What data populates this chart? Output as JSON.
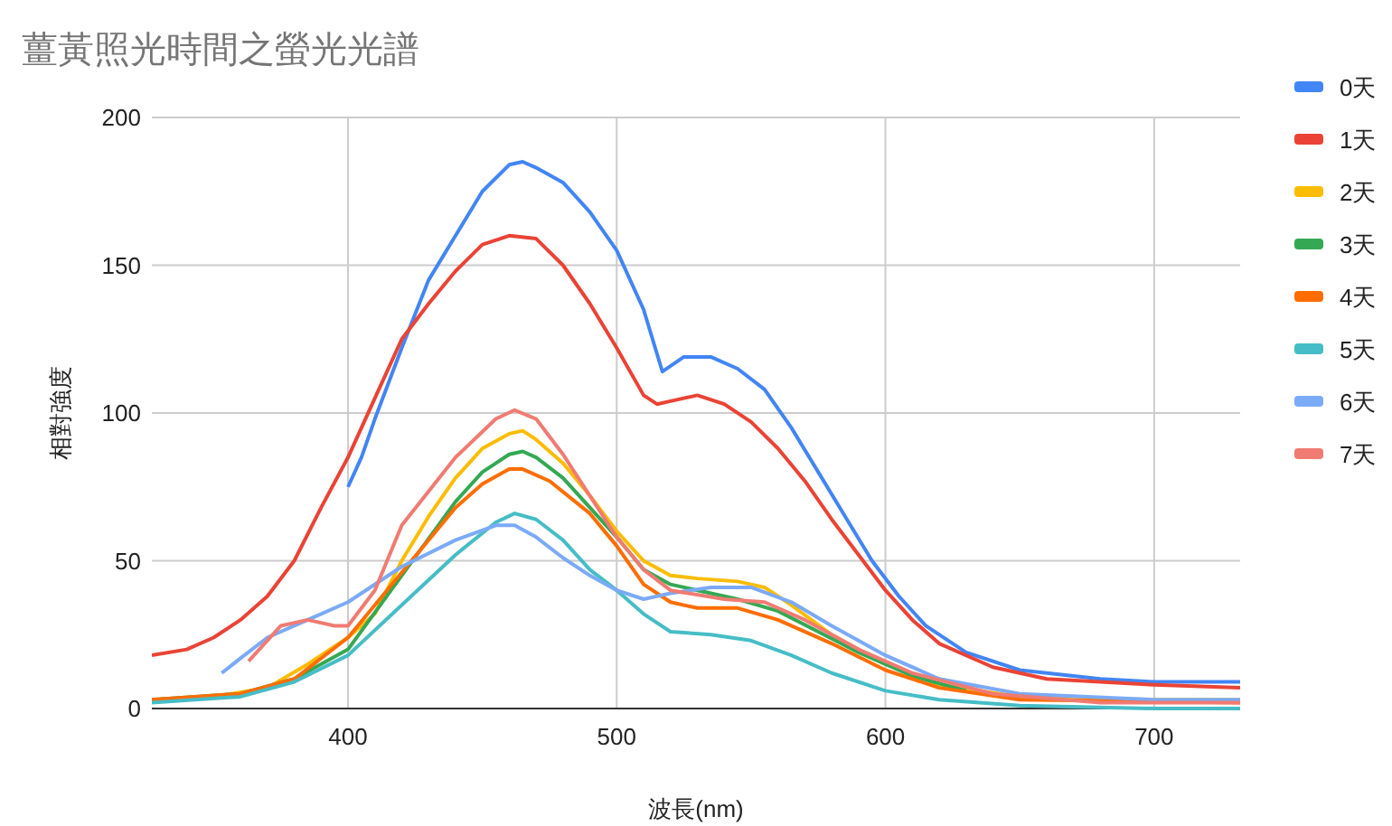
{
  "chart_data": {
    "type": "line",
    "title": "薑黃照光時間之螢光光譜",
    "xlabel": "波長(nm)",
    "ylabel": "相對強度",
    "xlim": [
      327,
      732
    ],
    "ylim": [
      0,
      200
    ],
    "xticks": [
      400,
      500,
      600,
      700
    ],
    "yticks": [
      0,
      50,
      100,
      150,
      200
    ],
    "grid": true,
    "legend": "top right",
    "series": [
      {
        "name": "0天",
        "color": "#4285f4",
        "x": [
          400,
          405,
          410,
          420,
          430,
          440,
          450,
          460,
          465,
          470,
          480,
          490,
          500,
          510,
          517,
          525,
          535,
          545,
          555,
          565,
          575,
          585,
          595,
          605,
          615,
          630,
          650,
          680,
          700,
          732
        ],
        "values": [
          75,
          85,
          98,
          122,
          145,
          160,
          175,
          184,
          185,
          183,
          178,
          168,
          155,
          135,
          114,
          119,
          119,
          115,
          108,
          95,
          80,
          65,
          50,
          38,
          28,
          19,
          13,
          10,
          9,
          9
        ]
      },
      {
        "name": "1天",
        "color": "#ea4335",
        "x": [
          327,
          340,
          350,
          360,
          370,
          380,
          390,
          400,
          410,
          420,
          430,
          440,
          450,
          460,
          470,
          480,
          490,
          500,
          510,
          515,
          520,
          530,
          540,
          550,
          560,
          570,
          580,
          590,
          600,
          610,
          620,
          640,
          660,
          700,
          732
        ],
        "values": [
          18,
          20,
          24,
          30,
          38,
          50,
          68,
          85,
          105,
          125,
          137,
          148,
          157,
          160,
          159,
          150,
          137,
          122,
          106,
          103,
          104,
          106,
          103,
          97,
          88,
          77,
          64,
          52,
          40,
          30,
          22,
          14,
          10,
          8,
          7
        ]
      },
      {
        "name": "2天",
        "color": "#fbbc04",
        "x": [
          327,
          350,
          370,
          385,
          400,
          410,
          420,
          430,
          440,
          450,
          460,
          465,
          470,
          480,
          490,
          500,
          510,
          520,
          530,
          545,
          555,
          565,
          580,
          600,
          620,
          650,
          700,
          732
        ],
        "values": [
          3,
          4,
          7,
          15,
          24,
          32,
          50,
          65,
          78,
          88,
          93,
          94,
          91,
          83,
          72,
          60,
          50,
          45,
          44,
          43,
          41,
          35,
          25,
          15,
          8,
          4,
          3,
          3
        ]
      },
      {
        "name": "3天",
        "color": "#34a853",
        "x": [
          327,
          360,
          380,
          400,
          420,
          440,
          450,
          460,
          465,
          470,
          480,
          490,
          500,
          510,
          520,
          530,
          545,
          560,
          575,
          590,
          610,
          630
        ],
        "values": [
          3,
          5,
          10,
          20,
          45,
          70,
          80,
          86,
          87,
          85,
          78,
          68,
          58,
          47,
          42,
          40,
          37,
          33,
          26,
          19,
          11,
          6
        ]
      },
      {
        "name": "4天",
        "color": "#ff6d01",
        "x": [
          327,
          360,
          380,
          400,
          420,
          440,
          450,
          460,
          465,
          475,
          490,
          500,
          510,
          520,
          530,
          545,
          560,
          580,
          600,
          620,
          650,
          732
        ],
        "values": [
          3,
          5,
          10,
          24,
          46,
          68,
          76,
          81,
          81,
          77,
          66,
          55,
          42,
          36,
          34,
          34,
          30,
          22,
          13,
          7,
          3,
          2
        ]
      },
      {
        "name": "5天",
        "color": "#46bdc6",
        "x": [
          327,
          360,
          380,
          400,
          420,
          440,
          455,
          462,
          470,
          480,
          490,
          500,
          510,
          520,
          535,
          550,
          565,
          580,
          600,
          620,
          650,
          700,
          732
        ],
        "values": [
          2,
          4,
          9,
          18,
          35,
          52,
          63,
          66,
          64,
          57,
          47,
          40,
          32,
          26,
          25,
          23,
          18,
          12,
          6,
          3,
          1,
          0,
          0
        ]
      },
      {
        "name": "6天",
        "color": "#7baaf7",
        "x": [
          353,
          360,
          370,
          385,
          400,
          420,
          440,
          455,
          462,
          470,
          480,
          490,
          500,
          510,
          520,
          535,
          550,
          565,
          580,
          600,
          620,
          650,
          700,
          732
        ],
        "values": [
          12,
          17,
          24,
          30,
          36,
          48,
          57,
          62,
          62,
          58,
          51,
          45,
          40,
          37,
          39,
          41,
          41,
          36,
          28,
          18,
          10,
          5,
          3,
          3
        ]
      },
      {
        "name": "7天",
        "color": "#f07b72",
        "x": [
          363,
          375,
          385,
          395,
          400,
          410,
          420,
          440,
          455,
          462,
          470,
          480,
          490,
          500,
          510,
          520,
          540,
          555,
          570,
          590,
          610,
          640,
          680,
          732
        ],
        "values": [
          16,
          28,
          30,
          28,
          28,
          40,
          62,
          85,
          98,
          101,
          98,
          86,
          72,
          58,
          47,
          40,
          37,
          36,
          30,
          20,
          12,
          5,
          2,
          2
        ]
      }
    ]
  }
}
